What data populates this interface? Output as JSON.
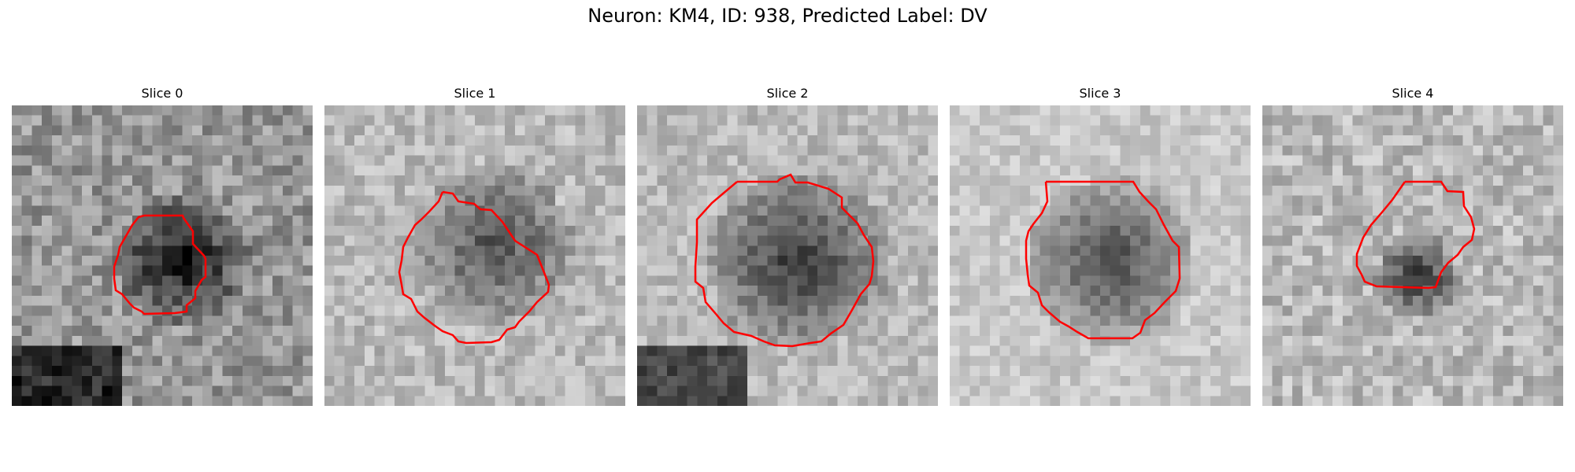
{
  "figure": {
    "title": "Neuron: KM4, ID: 938, Predicted Label: DV",
    "contour_color": "#ff0000",
    "colormap": "gray"
  },
  "slices": [
    {
      "title": "Slice 0"
    },
    {
      "title": "Slice 1"
    },
    {
      "title": "Slice 2"
    },
    {
      "title": "Slice 3"
    },
    {
      "title": "Slice 4"
    }
  ]
}
